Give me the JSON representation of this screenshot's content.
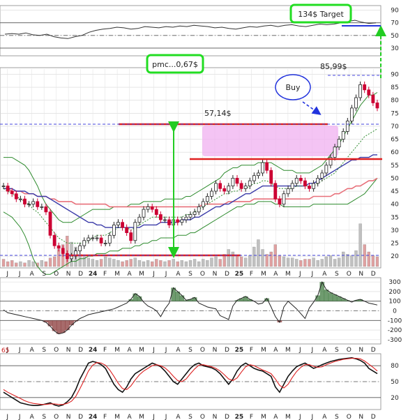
{
  "chart_data": {
    "type": "line",
    "x_labels": [
      "J",
      "J",
      "A",
      "S",
      "O",
      "N",
      "D",
      "24",
      "F",
      "M",
      "A",
      "M",
      "J",
      "J",
      "A",
      "S",
      "O",
      "N",
      "D",
      "25",
      "F",
      "M",
      "A",
      "M",
      "J",
      "J",
      "A",
      "S",
      "O",
      "N",
      "D"
    ],
    "bold_x_labels": [
      "24",
      "25"
    ],
    "panels": {
      "top_indicator": {
        "y_ticks": [
          90,
          70,
          50,
          30
        ],
        "ylim": [
          20,
          95
        ],
        "values": [
          52,
          53,
          52,
          54,
          51,
          50,
          52,
          48,
          46,
          45,
          48,
          50,
          55,
          58,
          60,
          61,
          63,
          62,
          60,
          61,
          64,
          63,
          62,
          64,
          63,
          65,
          64,
          66,
          65,
          64,
          62,
          63,
          61,
          60,
          62,
          64,
          63,
          65,
          66,
          64,
          66,
          67,
          65,
          64,
          66,
          68,
          67,
          68,
          70,
          72,
          74,
          71,
          69,
          70
        ]
      },
      "price": {
        "y_ticks": [
          90,
          85,
          80,
          75,
          70,
          65,
          60,
          55,
          50,
          45,
          40,
          35,
          30,
          25,
          20
        ],
        "ylim": [
          16,
          92
        ],
        "close": [
          47,
          45,
          44,
          42,
          42,
          40,
          40,
          41,
          39,
          39,
          37,
          28,
          24,
          23,
          21,
          19,
          20,
          22,
          24,
          26,
          27,
          27,
          27,
          25,
          25,
          28,
          32,
          33,
          31,
          29,
          26,
          33,
          35,
          38,
          39,
          38,
          36,
          34,
          34,
          32,
          34,
          33,
          34,
          35,
          36,
          37,
          39,
          41,
          43,
          45,
          48,
          46,
          45,
          47,
          50,
          48,
          46,
          47,
          49,
          51,
          52,
          56,
          53,
          48,
          42,
          40,
          44,
          46,
          48,
          50,
          49,
          47,
          46,
          48,
          50,
          52,
          55,
          58,
          62,
          65,
          68,
          72,
          77,
          81,
          86,
          84,
          82,
          79,
          77
        ],
        "ma_red": [
          46,
          46,
          45,
          45,
          45,
          44,
          44,
          44,
          43,
          43,
          43,
          42,
          42,
          41,
          41,
          41,
          41,
          40,
          40,
          40,
          40,
          40,
          40,
          40,
          40,
          39,
          39,
          39,
          39,
          39,
          39,
          39,
          39,
          39,
          39,
          39,
          39,
          39,
          39,
          39,
          39,
          39,
          39,
          39,
          39,
          39,
          39,
          40,
          40,
          40,
          40,
          40,
          40,
          41,
          41,
          41,
          41,
          41,
          41,
          42,
          42,
          42,
          42,
          42,
          42,
          42,
          42,
          42,
          42,
          42,
          42,
          42,
          42,
          43,
          43,
          43,
          43,
          43,
          44,
          44,
          45,
          46,
          46,
          47,
          47,
          48,
          49,
          49,
          50
        ],
        "ma_blue": [
          46,
          46,
          46,
          45,
          45,
          45,
          44,
          44,
          43,
          43,
          43,
          42,
          41,
          40,
          39,
          38,
          37,
          36,
          35,
          34,
          33,
          33,
          32,
          32,
          31,
          31,
          31,
          31,
          31,
          31,
          31,
          31,
          31,
          32,
          32,
          32,
          32,
          33,
          33,
          33,
          33,
          33,
          34,
          34,
          34,
          35,
          35,
          36,
          37,
          38,
          39,
          39,
          40,
          40,
          41,
          42,
          43,
          44,
          44,
          45,
          46,
          47,
          47,
          47,
          47,
          47,
          47,
          47,
          47,
          47,
          47,
          47,
          48,
          48,
          49,
          50,
          51,
          52,
          53,
          54,
          55,
          56,
          57,
          57,
          58,
          58,
          58,
          59,
          59
        ],
        "ma_green_dot": [
          46,
          45,
          44,
          43,
          42,
          41,
          40,
          38,
          37,
          35,
          33,
          31,
          29,
          27,
          26,
          25,
          25,
          25,
          25,
          25,
          26,
          27,
          28,
          28,
          28,
          29,
          30,
          31,
          31,
          31,
          30,
          31,
          32,
          33,
          34,
          35,
          35,
          35,
          35,
          35,
          35,
          35,
          35,
          36,
          36,
          37,
          38,
          39,
          40,
          41,
          42,
          43,
          44,
          44,
          45,
          45,
          46,
          46,
          47,
          48,
          48,
          49,
          49,
          48,
          47,
          46,
          46,
          46,
          46,
          47,
          47,
          47,
          47,
          47,
          48,
          49,
          50,
          51,
          52,
          54,
          56,
          58,
          60,
          62,
          64,
          66,
          67,
          68,
          69
        ],
        "band_upper": [
          58,
          58,
          58,
          57,
          56,
          55,
          53,
          50,
          47,
          43,
          40,
          38,
          36,
          34,
          33,
          33,
          33,
          34,
          35,
          36,
          37,
          38,
          38,
          38,
          38,
          38,
          39,
          39,
          39,
          39,
          40,
          40,
          40,
          41,
          41,
          41,
          41,
          41,
          42,
          42,
          42,
          42,
          42,
          43,
          43,
          44,
          45,
          46,
          47,
          48,
          49,
          50,
          52,
          53,
          54,
          54,
          55,
          55,
          55,
          55,
          56,
          56,
          56,
          56,
          55,
          54,
          53,
          53,
          53,
          52,
          52,
          52,
          52,
          53,
          54,
          55,
          57,
          59,
          61,
          63,
          66,
          69,
          72,
          75,
          78,
          80,
          82,
          82,
          83
        ],
        "band_lower": [
          37,
          36,
          35,
          33,
          31,
          28,
          24,
          19,
          16,
          14,
          13,
          13,
          14,
          15,
          16,
          17,
          18,
          18,
          19,
          19,
          20,
          20,
          21,
          21,
          21,
          22,
          22,
          22,
          23,
          23,
          23,
          24,
          24,
          25,
          25,
          26,
          26,
          27,
          27,
          27,
          27,
          28,
          28,
          28,
          29,
          29,
          30,
          31,
          32,
          33,
          34,
          35,
          36,
          37,
          38,
          39,
          39,
          40,
          40,
          40,
          41,
          41,
          41,
          41,
          40,
          40,
          39,
          39,
          39,
          39,
          39,
          39,
          39,
          40,
          40,
          40,
          40,
          40,
          40,
          40,
          40,
          40,
          41,
          42,
          43,
          44,
          46,
          48,
          50
        ],
        "volume": [
          6,
          4,
          5,
          3,
          4,
          3,
          5,
          4,
          3,
          5,
          4,
          7,
          8,
          14,
          18,
          25,
          20,
          16,
          10,
          8,
          7,
          6,
          5,
          6,
          8,
          7,
          6,
          5,
          4,
          5,
          6,
          7,
          5,
          4,
          5,
          4,
          6,
          5,
          4,
          5,
          6,
          4,
          5,
          4,
          5,
          6,
          4,
          6,
          5,
          7,
          8,
          6,
          10,
          14,
          12,
          9,
          8,
          7,
          9,
          16,
          22,
          14,
          10,
          12,
          18,
          9,
          8,
          7,
          7,
          6,
          5,
          6,
          6,
          7,
          5,
          6,
          8,
          9,
          6,
          7,
          12,
          10,
          9,
          13,
          35,
          18,
          12,
          9,
          8
        ],
        "annotations": {
          "target_label": "134$ Target",
          "pmc_label": "pmc...0,67$",
          "level_mid_label": "57,14$",
          "level_high_label": "85,99$",
          "buy_label": "Buy"
        }
      },
      "cci": {
        "y_ticks": [
          300,
          200,
          100,
          0,
          -100,
          -200,
          -300
        ],
        "ylim": [
          -330,
          330
        ],
        "values": [
          10,
          -20,
          -30,
          -40,
          -50,
          -60,
          -70,
          -80,
          -90,
          -100,
          -120,
          -160,
          -210,
          -240,
          -230,
          -200,
          -150,
          -110,
          -80,
          -60,
          -40,
          -30,
          -20,
          -10,
          0,
          10,
          20,
          40,
          60,
          80,
          120,
          180,
          150,
          90,
          50,
          30,
          0,
          -60,
          20,
          80,
          240,
          200,
          160,
          110,
          120,
          140,
          80,
          60,
          40,
          30,
          20,
          -50,
          -70,
          -90,
          50,
          110,
          130,
          150,
          120,
          100,
          70,
          80,
          130,
          40,
          -60,
          -120,
          40,
          100,
          60,
          20,
          -30,
          -80,
          30,
          90,
          160,
          300,
          220,
          190,
          170,
          150,
          130,
          110,
          90,
          110,
          120,
          100,
          80,
          70,
          60
        ]
      },
      "stoch": {
        "left_label": "65",
        "y_ticks": [
          80,
          50,
          20
        ],
        "ylim": [
          0,
          100
        ],
        "k": [
          30,
          25,
          20,
          15,
          10,
          8,
          6,
          5,
          5,
          6,
          8,
          10,
          6,
          4,
          6,
          12,
          20,
          35,
          55,
          70,
          85,
          88,
          86,
          82,
          75,
          60,
          45,
          35,
          30,
          40,
          55,
          65,
          70,
          75,
          80,
          85,
          82,
          78,
          70,
          60,
          50,
          45,
          55,
          65,
          75,
          82,
          85,
          80,
          78,
          76,
          72,
          65,
          55,
          45,
          55,
          70,
          80,
          85,
          80,
          75,
          72,
          70,
          65,
          60,
          40,
          30,
          45,
          60,
          70,
          78,
          82,
          85,
          80,
          75,
          78,
          82,
          85,
          88,
          90,
          92,
          93,
          94,
          95,
          93,
          90,
          85,
          75,
          70,
          65
        ],
        "d": [
          35,
          30,
          26,
          22,
          18,
          14,
          11,
          9,
          8,
          7,
          7,
          8,
          8,
          7,
          7,
          9,
          13,
          22,
          37,
          53,
          70,
          81,
          86,
          85,
          81,
          72,
          60,
          47,
          37,
          35,
          42,
          53,
          63,
          70,
          75,
          80,
          82,
          80,
          76,
          69,
          60,
          52,
          50,
          55,
          65,
          74,
          81,
          82,
          80,
          78,
          75,
          70,
          63,
          55,
          52,
          57,
          68,
          78,
          82,
          80,
          76,
          72,
          69,
          65,
          55,
          43,
          38,
          45,
          58,
          69,
          77,
          82,
          82,
          79,
          77,
          78,
          82,
          85,
          88,
          90,
          92,
          93,
          94,
          94,
          93,
          89,
          83,
          77,
          70
        ]
      }
    },
    "colors": {
      "price_up": "#222222",
      "price_down": "#cc0033",
      "ma_red": "#e8707a",
      "ma_blue": "#3a3aa8",
      "band": "#2e8b2e",
      "volume": "#c0c0c0",
      "support_line": "#e02020",
      "highlight_box": "#f0b0f0",
      "callout_border": "#22dd22",
      "arrow_green": "#22cc22",
      "arrow_blue": "#2233dd"
    }
  }
}
